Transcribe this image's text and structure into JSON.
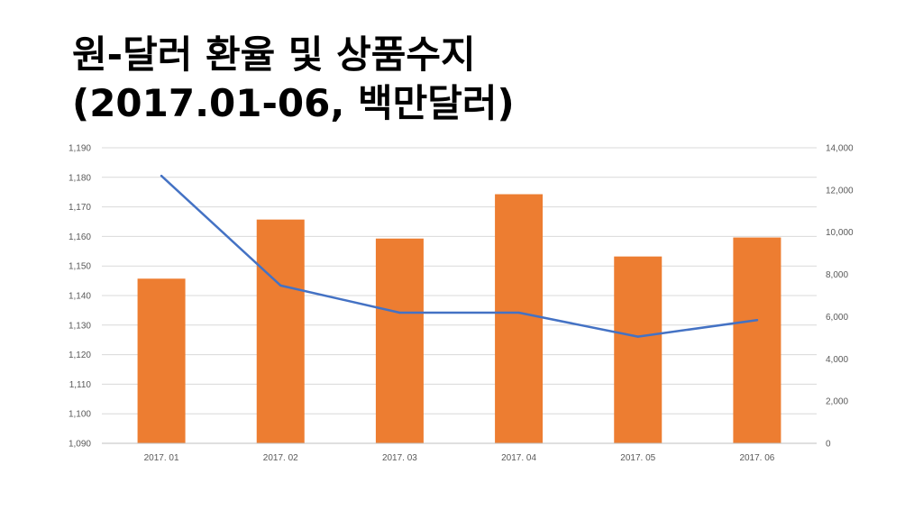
{
  "title": {
    "line1": "원-달러 환율 및 상품수지",
    "line2": "(2017.01-06, 백만달러)"
  },
  "chart_data": {
    "type": "bar+line",
    "categories": [
      "2017. 01",
      "2017. 02",
      "2017. 03",
      "2017. 04",
      "2017. 05",
      "2017. 06"
    ],
    "series": [
      {
        "name": "원-달러 환율",
        "kind": "line",
        "axis": "left",
        "color": "#4472C4",
        "values": [
          1180.5,
          1143.4,
          1134.2,
          1134.2,
          1126.1,
          1131.7
        ]
      },
      {
        "name": "상품수지",
        "kind": "bar",
        "axis": "right",
        "color": "#ED7D31",
        "values": [
          7800,
          10600,
          9700,
          11800,
          8850,
          9750
        ]
      }
    ],
    "y_left": {
      "min": 1090,
      "max": 1190,
      "step": 10,
      "tick_labels": [
        "1,090",
        "1,100",
        "1,110",
        "1,120",
        "1,130",
        "1,140",
        "1,150",
        "1,160",
        "1,170",
        "1,180",
        "1,190"
      ]
    },
    "y_right": {
      "min": 0,
      "max": 14000,
      "step": 2000,
      "tick_labels": [
        "0",
        "2,000",
        "4,000",
        "6,000",
        "8,000",
        "10,000",
        "12,000",
        "14,000"
      ]
    },
    "grid": true,
    "gridline_color": "#D9D9D9",
    "axis_line_color": "#BFBFBF"
  }
}
